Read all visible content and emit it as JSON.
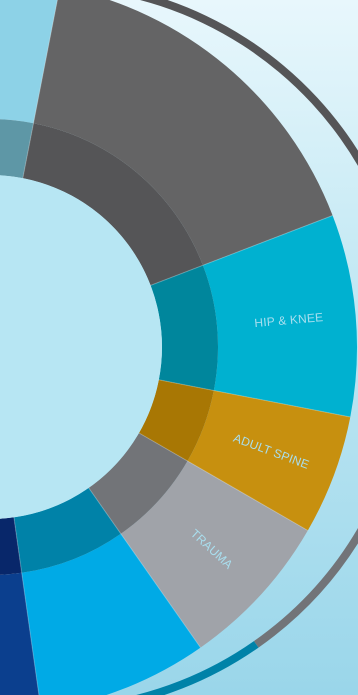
{
  "segments": [
    {
      "name": "top-light-blue",
      "label": "",
      "start": 200,
      "end": 281,
      "top": "#8dd2e7",
      "side": "#5e97a6"
    },
    {
      "name": "top-dark-gray",
      "label": "",
      "start": 281,
      "end": 339,
      "top": "#646465",
      "side": "#555557"
    },
    {
      "name": "hip-knee",
      "label": "HIP & KNEE",
      "start": 339,
      "end": 371,
      "top": "#00b1d0",
      "side": "#00869c"
    },
    {
      "name": "adult-spine",
      "label": "ADULT SPINE",
      "start": 371,
      "end": 390,
      "top": "#c7900f",
      "side": "#a87704"
    },
    {
      "name": "trauma",
      "label": "TRAUMA",
      "start": 390,
      "end": 415,
      "top": "#a0a3a9",
      "side": "#727478"
    },
    {
      "name": "bright-blue",
      "label": "",
      "start": 415,
      "end": 442,
      "top": "#00aae6",
      "side": "#0082a8"
    },
    {
      "name": "navy-blue",
      "label": "",
      "start": 442,
      "end": 467,
      "top": "#0b3f8e",
      "side": "#08276a"
    },
    {
      "name": "bottom-light-blue",
      "label": "",
      "start": 467,
      "end": 520,
      "top": "#8dd2e7",
      "side": "#5e97a6"
    }
  ],
  "colors": {
    "background_top": "#e8f7fc",
    "background_bottom": "#9ad6ea",
    "hole": "#b7e6f3",
    "label_text": "#a9dfef"
  }
}
